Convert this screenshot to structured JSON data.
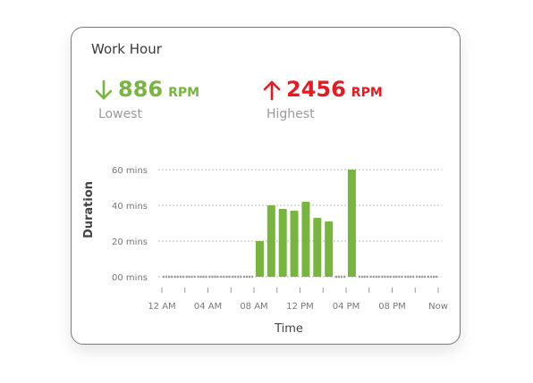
{
  "card": {
    "title": "Work Hour"
  },
  "stats": {
    "lowest": {
      "value": "886",
      "unit": "RPM",
      "label": "Lowest",
      "color": "#78b53f",
      "icon": "arrow-down-icon"
    },
    "highest": {
      "value": "2456",
      "unit": "RPM",
      "label": "Highest",
      "color": "#e31b23",
      "icon": "arrow-up-icon"
    }
  },
  "chart_data": {
    "type": "bar",
    "xlabel": "Time",
    "ylabel": "Duration",
    "ylim": [
      0,
      60
    ],
    "yticks": [
      {
        "value": 0,
        "label": "00 mins"
      },
      {
        "value": 20,
        "label": "20 mins"
      },
      {
        "value": 40,
        "label": "40 mins"
      },
      {
        "value": 60,
        "label": "60 mins"
      }
    ],
    "xticks": [
      {
        "hour": 0,
        "label": "12 AM"
      },
      {
        "hour": 4,
        "label": "04 AM"
      },
      {
        "hour": 8,
        "label": "08 AM"
      },
      {
        "hour": 12,
        "label": "12 PM"
      },
      {
        "hour": 16,
        "label": "04 PM"
      },
      {
        "hour": 20,
        "label": "08 PM"
      },
      {
        "hour": 24,
        "label": "Now"
      }
    ],
    "categories": [
      "0",
      "1",
      "2",
      "3",
      "4",
      "5",
      "6",
      "7",
      "8",
      "9",
      "10",
      "11",
      "12",
      "13",
      "14",
      "15",
      "16",
      "17",
      "18",
      "19",
      "20",
      "21",
      "22",
      "23"
    ],
    "values": [
      0,
      0,
      0,
      0,
      0,
      0,
      0,
      0,
      20,
      40,
      38,
      37,
      42,
      33,
      31,
      0,
      60,
      0,
      0,
      0,
      0,
      0,
      0,
      0
    ],
    "grid": true,
    "legend": "none",
    "bar_color": "#78b53f",
    "zero_color": "#9a9a9a"
  }
}
